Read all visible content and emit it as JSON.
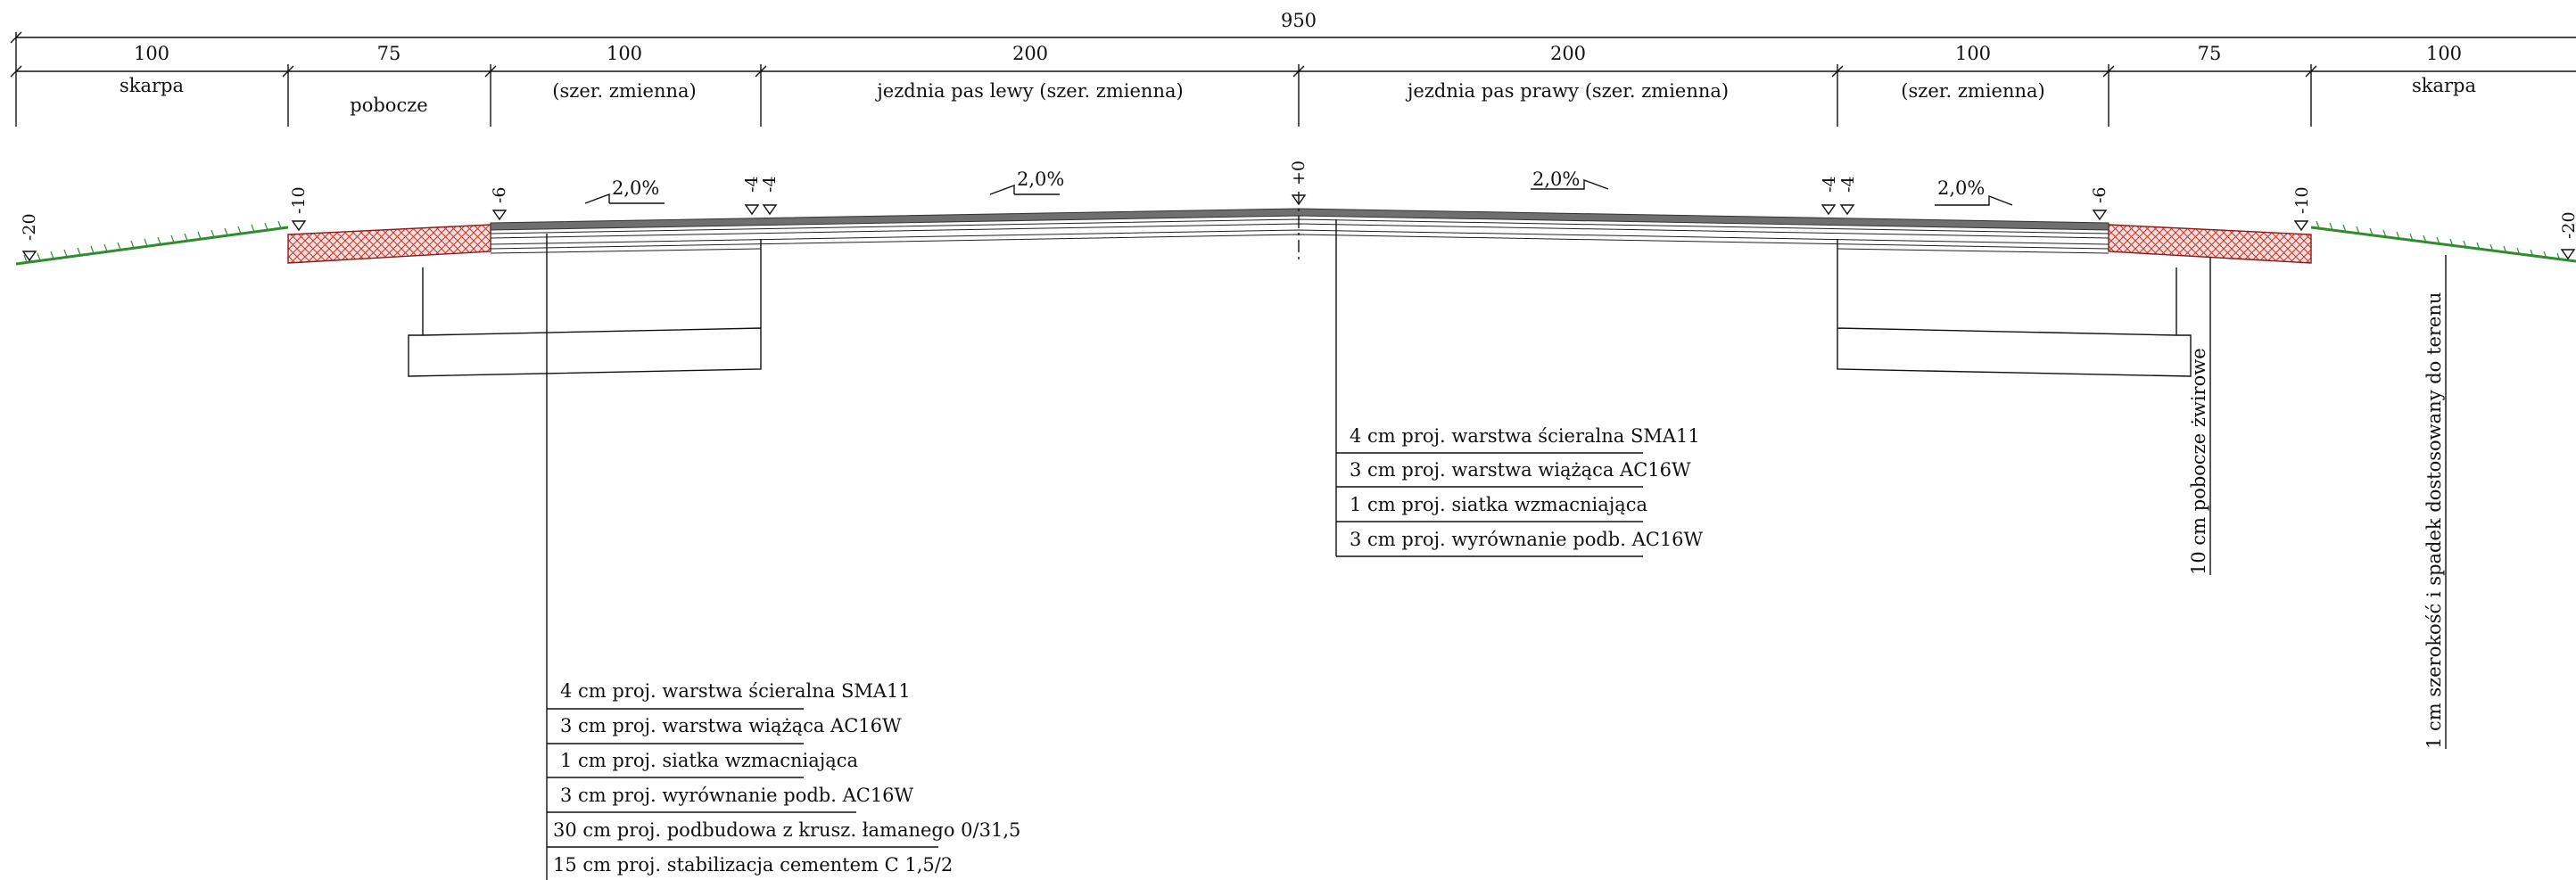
{
  "drawing": {
    "dimensions": {
      "total": "950",
      "segments": [
        "100",
        "75",
        "100",
        "200",
        "200",
        "100",
        "75",
        "100"
      ]
    },
    "zones": {
      "skarpa_left": "skarpa",
      "pobocze_left": "pobocze",
      "variable_left": "(szer. zmienna)",
      "lane_left": "jezdnia pas lewy (szer. zmienna)",
      "lane_right": "jezdnia pas prawy (szer. zmienna)",
      "variable_right": "(szer. zmienna)",
      "skarpa_right": "skarpa"
    },
    "slopes": [
      "2,0%",
      "2,0%",
      "2,0%",
      "2,0%"
    ],
    "elevations": [
      "-20",
      "-10",
      "-6",
      "-4",
      "-4",
      "+0",
      "-4",
      "-4",
      "-6",
      "-10",
      "-20"
    ],
    "layers_center": [
      "4 cm proj. warstwa ścieralna SMA11",
      "3 cm proj. warstwa wiążąca AC16W",
      "1 cm proj. siatka wzmacniająca",
      "3 cm proj. wyrównanie podb. AC16W"
    ],
    "layers_widening": [
      "4 cm proj. warstwa ścieralna SMA11",
      "3 cm proj. warstwa wiążąca AC16W",
      "1 cm proj. siatka wzmacniająca",
      "3 cm proj. wyrównanie podb. AC16W",
      "30 cm proj. podbudowa  z krusz. łamanego 0/31,5",
      "15 cm proj. stabilizacja cementem C 1,5/2"
    ],
    "notes": {
      "gravel_shoulder": "10 cm pobocze żwirowe",
      "humus": "1 cm szerokość i spadek dostosowany do terenu"
    }
  },
  "colors": {
    "asphalt": "#6f6f6f",
    "shoulder_hatch": "#c0392b",
    "shoulder_fill": "#f3dede",
    "grass": "#2e8b2e"
  }
}
